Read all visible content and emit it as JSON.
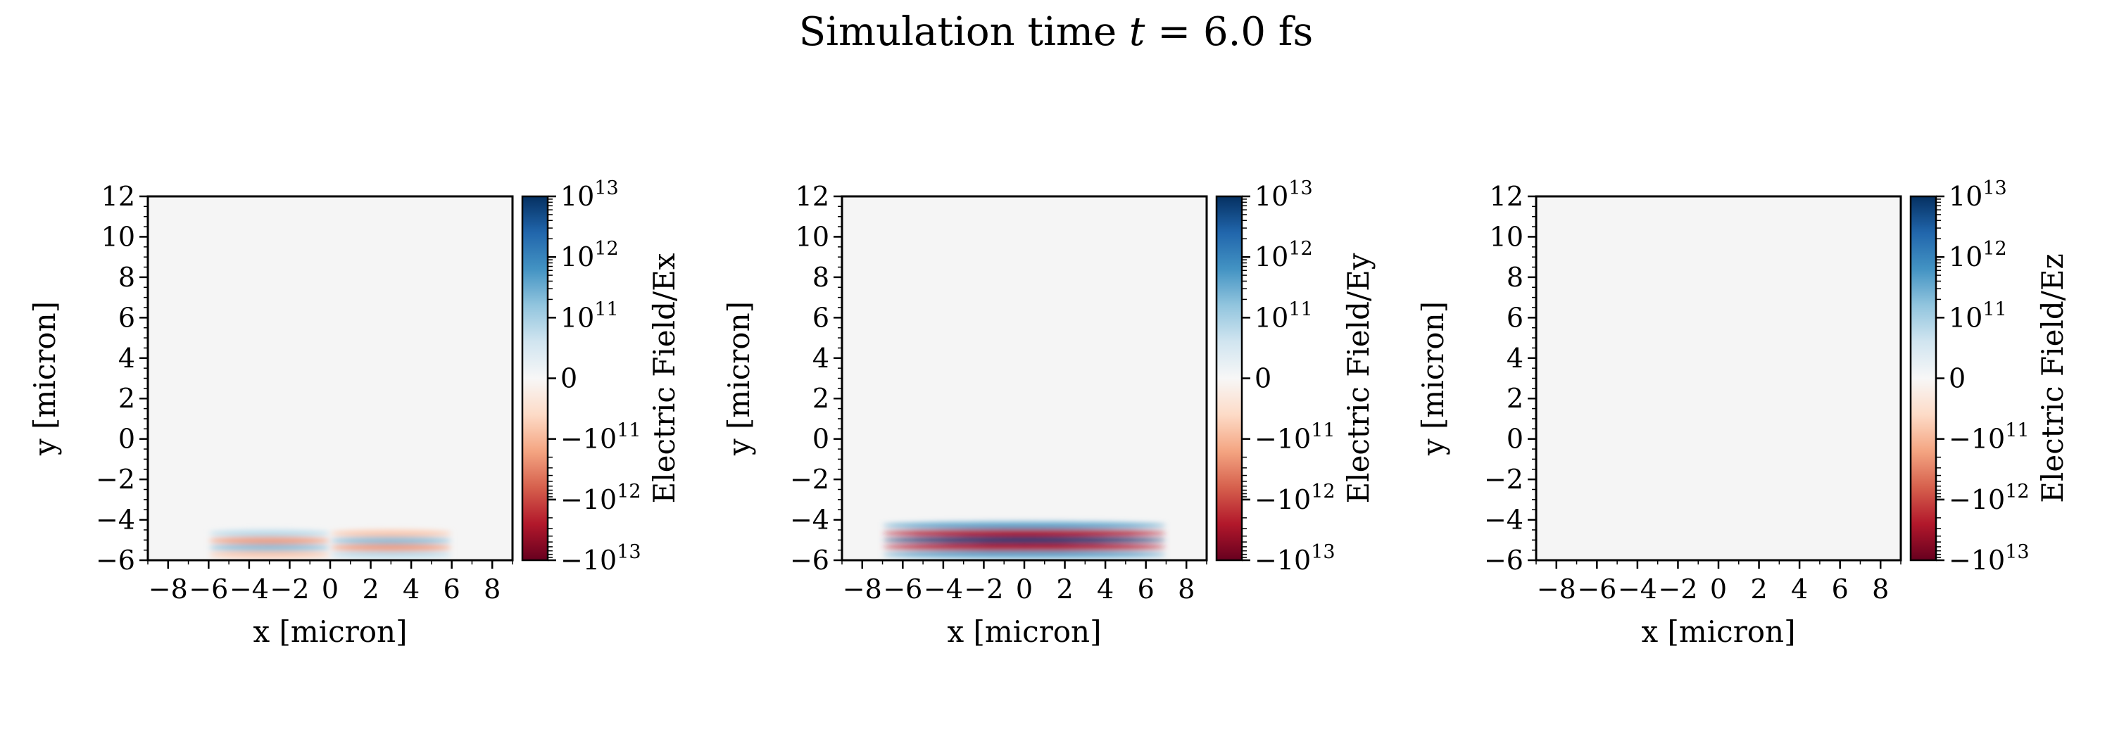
{
  "figure": {
    "title_prefix": "Simulation time ",
    "title_var": "t",
    "title_suffix": " = 6.0 fs"
  },
  "colors": {
    "background": "#f5f5f5",
    "cmap": [
      "#67001f",
      "#b2182b",
      "#d6604d",
      "#f4a582",
      "#fddbc7",
      "#f7f7f7",
      "#d1e5f0",
      "#92c5de",
      "#4393c3",
      "#2166ac",
      "#053061"
    ]
  },
  "chart_data": [
    {
      "type": "heatmap",
      "title": "",
      "xlabel": "x [micron]",
      "ylabel": "y [micron]",
      "colorbar_label": "Electric Field/Ex",
      "xlim": [
        -9,
        9
      ],
      "ylim": [
        -6,
        12
      ],
      "xticks": [
        -8,
        -6,
        -4,
        -2,
        0,
        2,
        4,
        6,
        8
      ],
      "yticks": [
        -6,
        -4,
        -2,
        0,
        2,
        4,
        6,
        8,
        10,
        12
      ],
      "colorbar_scale": "symlog",
      "colorbar_ticks": [
        {
          "base": "−10",
          "exp": "13"
        },
        {
          "base": "−10",
          "exp": "12"
        },
        {
          "base": "−10",
          "exp": "11"
        },
        {
          "base": "0",
          "exp": ""
        },
        {
          "base": "10",
          "exp": "11"
        },
        {
          "base": "10",
          "exp": "12"
        },
        {
          "base": "10",
          "exp": "13"
        }
      ],
      "pulse": {
        "center_x": 0,
        "center_y": -5.2,
        "half_width_x": 6,
        "half_height_y": 0.7,
        "bands": 4,
        "peak_level": 0.45,
        "sign_flip_at_x": 0
      }
    },
    {
      "type": "heatmap",
      "title": "",
      "xlabel": "x [micron]",
      "ylabel": "y [micron]",
      "colorbar_label": "Electric Field/Ey",
      "xlim": [
        -9,
        9
      ],
      "ylim": [
        -6,
        12
      ],
      "xticks": [
        -8,
        -6,
        -4,
        -2,
        0,
        2,
        4,
        6,
        8
      ],
      "yticks": [
        -6,
        -4,
        -2,
        0,
        2,
        4,
        6,
        8,
        10,
        12
      ],
      "colorbar_scale": "symlog",
      "colorbar_ticks": [
        {
          "base": "−10",
          "exp": "13"
        },
        {
          "base": "−10",
          "exp": "12"
        },
        {
          "base": "−10",
          "exp": "11"
        },
        {
          "base": "0",
          "exp": ""
        },
        {
          "base": "10",
          "exp": "11"
        },
        {
          "base": "10",
          "exp": "12"
        },
        {
          "base": "10",
          "exp": "13"
        }
      ],
      "pulse": {
        "center_x": 0,
        "center_y": -5.0,
        "half_width_x": 7,
        "half_height_y": 0.9,
        "bands": 5,
        "peak_level": 0.95,
        "sign_flip_at_x": null
      }
    },
    {
      "type": "heatmap",
      "title": "",
      "xlabel": "x [micron]",
      "ylabel": "y [micron]",
      "colorbar_label": "Electric Field/Ez",
      "xlim": [
        -9,
        9
      ],
      "ylim": [
        -6,
        12
      ],
      "xticks": [
        -8,
        -6,
        -4,
        -2,
        0,
        2,
        4,
        6,
        8
      ],
      "yticks": [
        -6,
        -4,
        -2,
        0,
        2,
        4,
        6,
        8,
        10,
        12
      ],
      "colorbar_scale": "symlog",
      "colorbar_ticks": [
        {
          "base": "−10",
          "exp": "13"
        },
        {
          "base": "−10",
          "exp": "12"
        },
        {
          "base": "−10",
          "exp": "11"
        },
        {
          "base": "0",
          "exp": ""
        },
        {
          "base": "10",
          "exp": "11"
        },
        {
          "base": "10",
          "exp": "12"
        },
        {
          "base": "10",
          "exp": "13"
        }
      ],
      "pulse": null
    }
  ]
}
